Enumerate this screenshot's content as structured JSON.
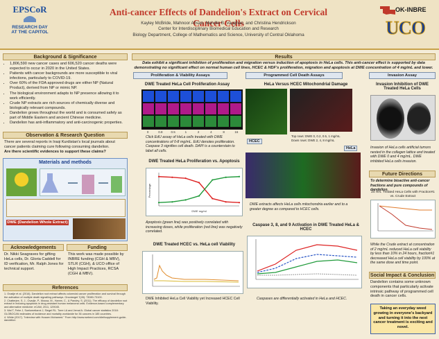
{
  "header": {
    "title": "Anti-cancer Effects of Dandelion's Extract on Cervical Cancer Cells",
    "authors": "Kayley McBride, Mahnoor Ahsan, Melville B. Vaughan, and Christina Hendrickson",
    "center": "Center for Interdisciplinary Biomedical Education and Research",
    "dept": "Biology Department, College of Mathematics and Science, University of Central Oklahoma",
    "left_logo": "EPSCoR",
    "left_sub1": "RESEARCH DAY",
    "left_sub2": "AT THE CAPITOL",
    "right_logo": "OK-INBRE",
    "uco": "UCO"
  },
  "left": {
    "bg_title": "Background & Significance",
    "bg_items": [
      "1,806,590 new cancer cases and 606,520 cancer deaths were expected to occur in 2020 in the United States.",
      "Patients with cancer backgrounds are more susceptible to viral infections, particularly to COVID-19.",
      "Over 60% of the FDA approved drugs are either NP (Natural Product), derived from NP or mimic NP.",
      "The biological environment adapts to NP presence allowing it to work efficiently.",
      "Crude NP extracts are rich sources of chemically diverse and biologically relevant compounds.",
      "Dandelion grows throughout the world and is consumed safely as part of Middle Eastern and ancient Chinese medicine.",
      "Dandelion has anti-inflammatory and anti-carcinogenic properties."
    ],
    "obs_title": "Observation & Research Question",
    "obs_text": "There are several reports in Iraqi Kurdistan's local journals about cancer patients claiming cure following consuming dandelion.",
    "obs_q": "Are there scientific evidences to support these claims?",
    "mm_title": "Materials and methods",
    "dwe_label": "DWE (Dandelion Whole Extract)",
    "ack_title": "Acknowledgements",
    "ack_text": "Dr. Nikki Seagraves for gifting HeLa cells, Dr. Gloria Caddell for ID verification, Mr. Ralph Jones for technical support.",
    "fund_title": "Funding",
    "fund_text": "This work was made possible by INBRE funding (CGH & MBV), STLR (CGH), & UCO office of High Impact Practices, RCSA (CGH & MBV).",
    "ref_title": "References",
    "refs": [
      "1. Ovadje et al. (2016). Dandelion root extract affects colorectal cancer proliferation and survival through the activation of multiple death signalling pathways. Oncotarget 7(45): 73080-73100.",
      "2. Chatterjee, S. J., Ovadje, P., Mousa, M., Hamm, C., & Pandey, S. (2011). The efficacy of dandelion root extract in inducing apoptosis in drug-resistant human melanoma cells. Evidence-based complementary and alternative medicine: eCAM, 2011, 129045.",
      "3. Wai T, Fehe J, Soelometianni J, Siegel RL. Torre LA and Jemal A. Global cancer statistics 2018: GLOBOCAN estimates of incidence and mortality worldwide for 36 cancers in 185 countries.",
      "4. White (2017). \"Interview with Hussen Mohamed.\" From http://www.webmd.com/diet/supplement-guide-dandelion"
    ]
  },
  "results": {
    "title": "Results",
    "summary": "Data exhibit a significant inhibition of proliferation and migration versus induction of apoptosis in HeLa cells. This anti-cancer effect is supported by data demonstrating no significant effect on normal human cell lines, HCEC & HDF's proliferation, migration and apoptosis at DWE concentration of 4 mg/mL and lower.",
    "tab1": "Proliferation & Viability Assays",
    "tab2": "Programmed Cell Death Assays",
    "tab3": "Invasion Assay",
    "p1_title": "DWE Treated HeLa Cell Proliferation Assay",
    "p1_labels": [
      "0",
      "0.8",
      "0.5",
      "1",
      "2",
      "4",
      "8",
      "16"
    ],
    "p1_cap": "Click EdU assay of HeLa cells treated with DWE concentrations of 0-8 mg/mL. EdU denotes proliferation. Caspase 3 signifies cell death. DAPI is a counterstain to label all cells.",
    "p2_title": "DWE Treated HeLa Proliferation vs. Apoptosis",
    "p2_xlabel": "DWE  mg/ml",
    "p2_ylabel": "Percentage",
    "p2_cap": "Apoptosis (green line) was positively correlated with increasing doses, while proliferation (red line) was negatively correlated.",
    "p3_title": "DWE Treated HCEC vs. HeLa cell Viability",
    "p3_cap": "DWE Inhibited HeLa Cell Viability yet Increased HCEC Cell Viability.",
    "m1_title": "HeLa Versus HCEC Mitochondrial Damage",
    "m1_top": "Top rows: DWE 0, 0.2, 0.5, 1 mg/mL",
    "m1_bottom": "Down rows: DWE 2, 4, 8 mg/mL",
    "m1_left": "HCEC",
    "m1_right": "HeLa",
    "m1_cap": "DWE extracts affects HeLa cells mitochondria earlier and to a greater degree as compared to HCEC cells.",
    "m2_title": "Caspase 3, 8, and 9 Activation in DWE Treated HeLa & HCEC",
    "m2_cap": "Caspases are differentially activated in HeLa and HCEC.",
    "i1_title": "Invasion Inhibition of DWE Treated HeLa Cells",
    "i1_cap": "Invasion of HeLa cells artificial tumors nested in the collagen lattice and treated with DWE 0 and 4 mg/mL. DWE inhibited HeLa cells invasion."
  },
  "future": {
    "title": "Future Directions",
    "lead": "To determine bioactive anti-cancer fractions and pure compounds of dandelion.",
    "chart_title": "24 Hrs. Treated HeLa Cells with Fraction#1 vs. Crude Extract",
    "cap": "While the Crude extract at concentration of 2 mg/mL reduced HeLa cell viability by less than 10% in 24 hours, fraction#1 decreased HeLa cell viability by 100% at the same dose and time point."
  },
  "social": {
    "title": "Social Impact & Conclusion",
    "text": "Dandelion contains some unknown components that particularly activate intrinsic pathway of programmed cell death in cancer cells.",
    "box": "Taking an everyday weed growing in everyone's backyard and turning it into the next cancer treatment is exciting and novel."
  },
  "chart_data": [
    {
      "type": "line",
      "title": "DWE Treated HeLa Proliferation vs. Apoptosis",
      "xlabel": "DWE mg/ml",
      "ylabel": "Percentage",
      "x": [
        0,
        0.5,
        1,
        2,
        4,
        8,
        16
      ],
      "series": [
        {
          "name": "Proliferation",
          "values": [
            88,
            86,
            83,
            70,
            22,
            12,
            10
          ]
        },
        {
          "name": "Apoptosis",
          "values": [
            10,
            12,
            18,
            30,
            78,
            86,
            88
          ]
        }
      ]
    }
  ]
}
